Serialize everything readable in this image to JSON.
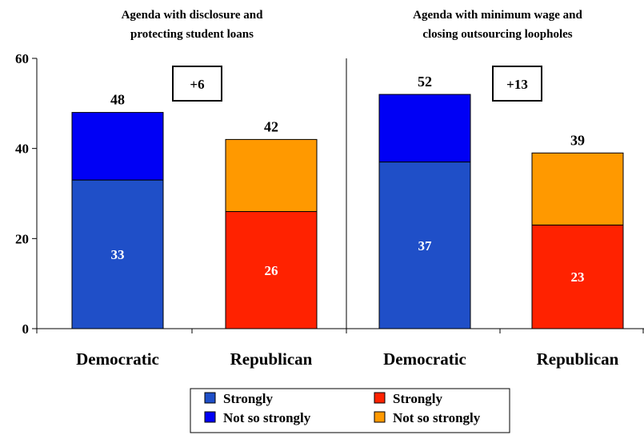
{
  "chart_data": {
    "type": "bar",
    "stacked": true,
    "ylim": [
      0,
      60
    ],
    "yticks": [
      0,
      20,
      40,
      60
    ],
    "categories": [
      "Democratic",
      "Republican",
      "Democratic",
      "Republican"
    ],
    "panels": [
      {
        "title_lines": [
          "Agenda with disclosure and",
          "protecting student loans"
        ],
        "difference_label": "+6",
        "bars": [
          {
            "category": "Democratic",
            "party": "dem",
            "strongly": 33,
            "not_so_strongly": 15,
            "total": 48
          },
          {
            "category": "Republican",
            "party": "rep",
            "strongly": 26,
            "not_so_strongly": 16,
            "total": 42
          }
        ]
      },
      {
        "title_lines": [
          "Agenda with minimum wage and",
          "closing outsourcing loopholes"
        ],
        "difference_label": "+13",
        "bars": [
          {
            "category": "Democratic",
            "party": "dem",
            "strongly": 37,
            "not_so_strongly": 15,
            "total": 52
          },
          {
            "category": "Republican",
            "party": "rep",
            "strongly": 23,
            "not_so_strongly": 16,
            "total": 39
          }
        ]
      }
    ],
    "legend": {
      "placement": "bottom-center",
      "entries": [
        {
          "label": "Strongly",
          "color": "#1f4fc8",
          "series": "dem-strongly"
        },
        {
          "label": "Strongly",
          "color": "#ff2200",
          "series": "rep-strongly"
        },
        {
          "label": "Not so strongly",
          "color": "#0000f5",
          "series": "dem-not-so-strongly"
        },
        {
          "label": "Not so strongly",
          "color": "#ff9900",
          "series": "rep-not-so-strongly"
        }
      ]
    },
    "colors": {
      "dem_strongly": "#1f4fc8",
      "dem_not_so_strongly": "#0000f5",
      "rep_strongly": "#ff2200",
      "rep_not_so_strongly": "#ff9900"
    },
    "grid": false
  }
}
